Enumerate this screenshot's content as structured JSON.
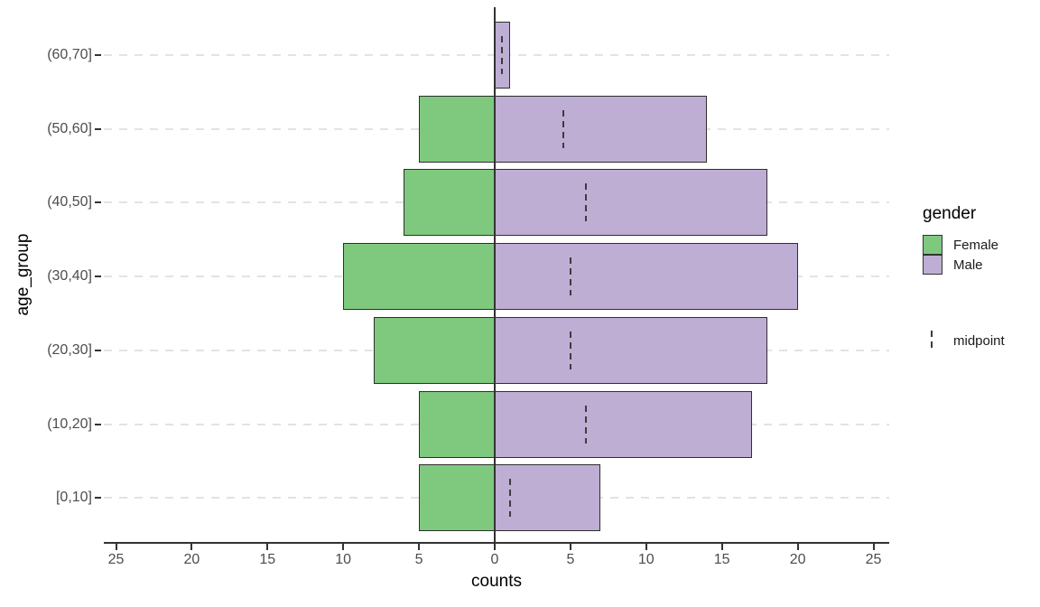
{
  "chart_data": {
    "type": "bar",
    "variant": "population_pyramid_horizontal",
    "title": "",
    "xlabel": "counts",
    "ylabel": "age_group",
    "categories": [
      "(60,70]",
      "(50,60]",
      "(40,50]",
      "(30,40]",
      "(20,30]",
      "(10,20]",
      "[0,10]"
    ],
    "series": [
      {
        "name": "Female",
        "side": "left",
        "color": "#7FC97F",
        "values": [
          0,
          5,
          6,
          10,
          8,
          5,
          5
        ]
      },
      {
        "name": "Male",
        "side": "right",
        "color": "#BEAED4",
        "values": [
          1,
          14,
          18,
          20,
          18,
          17,
          7
        ]
      }
    ],
    "midpoints": [
      0.5,
      4.5,
      6,
      5,
      5,
      6,
      1
    ],
    "xlim": [
      -25,
      25
    ],
    "x_ticks": [
      -25,
      -20,
      -15,
      -10,
      -5,
      0,
      5,
      10,
      15,
      20,
      25
    ],
    "x_tick_labels": [
      "25",
      "20",
      "15",
      "10",
      "5",
      "0",
      "5",
      "10",
      "15",
      "20",
      "25"
    ],
    "grid": "horizontal dashed",
    "legend_position": "right",
    "zero_line_x": 0
  },
  "axes": {
    "x_title": "counts",
    "y_title": "age_group"
  },
  "legend": {
    "title": "gender",
    "items": [
      {
        "label": "Female",
        "color": "#7FC97F"
      },
      {
        "label": "Male",
        "color": "#BEAED4"
      }
    ],
    "midpoint": {
      "label": "midpoint",
      "line_style": "dashed"
    }
  },
  "colors": {
    "female": "#7FC97F",
    "male": "#BEAED4",
    "bar_border": "#2E2E2E",
    "grid": "#E3E3E3",
    "axis_text": "#4D4D4D",
    "axis_line": "#333333",
    "zero_line": "#333333",
    "midpoint_line": "#3C3C3C",
    "background": "#FFFFFF"
  }
}
